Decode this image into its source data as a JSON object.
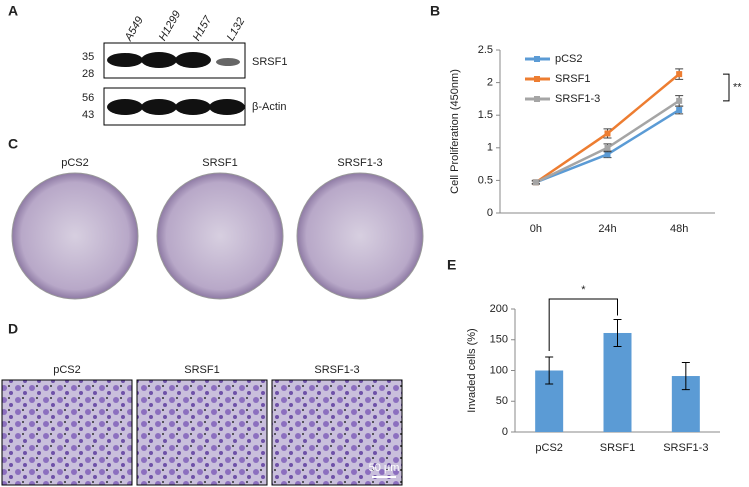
{
  "panels": {
    "A": {
      "label": "A",
      "lanes": [
        "A549",
        "H1299",
        "H157",
        "L132"
      ],
      "blots": [
        {
          "markers": [
            "35",
            "28"
          ],
          "label": "SRSF1"
        },
        {
          "markers": [
            "56",
            "43"
          ],
          "label": "β-Actin"
        }
      ]
    },
    "C": {
      "label": "C",
      "dishes": [
        "pCS2",
        "SRSF1",
        "SRSF1-3"
      ]
    },
    "D": {
      "label": "D",
      "images": [
        "pCS2",
        "SRSF1",
        "SRSF1-3"
      ],
      "scale_label": "50 μm"
    }
  },
  "chart_data": [
    {
      "type": "line",
      "panel_label": "B",
      "y_label": "Cell Proliferation (450nm)",
      "categories": [
        "0h",
        "24h",
        "48h"
      ],
      "series": [
        {
          "name": "pCS2",
          "color": "#5b9bd5",
          "values": [
            0.47,
            0.9,
            1.58
          ],
          "errors": [
            0.02,
            0.05,
            0.06
          ]
        },
        {
          "name": "SRSF1",
          "color": "#ed7d31",
          "values": [
            0.47,
            1.22,
            2.13
          ],
          "errors": [
            0.03,
            0.07,
            0.08
          ]
        },
        {
          "name": "SRSF1-3",
          "color": "#a5a5a5",
          "values": [
            0.47,
            1.0,
            1.72
          ],
          "errors": [
            0.02,
            0.06,
            0.08
          ]
        }
      ],
      "ylim": [
        0,
        2.5
      ],
      "yticks": [
        0,
        0.5,
        1,
        1.5,
        2,
        2.5
      ],
      "annotation": "**"
    },
    {
      "type": "bar",
      "panel_label": "E",
      "y_label": "Invaded cells (%)",
      "categories": [
        "pCS2",
        "SRSF1",
        "SRSF1-3"
      ],
      "values": [
        100,
        161,
        91
      ],
      "errors": [
        22,
        22,
        22
      ],
      "color": "#5b9bd5",
      "ylim": [
        0,
        200
      ],
      "yticks": [
        0,
        50,
        100,
        150,
        200
      ],
      "annotation": "*"
    }
  ]
}
